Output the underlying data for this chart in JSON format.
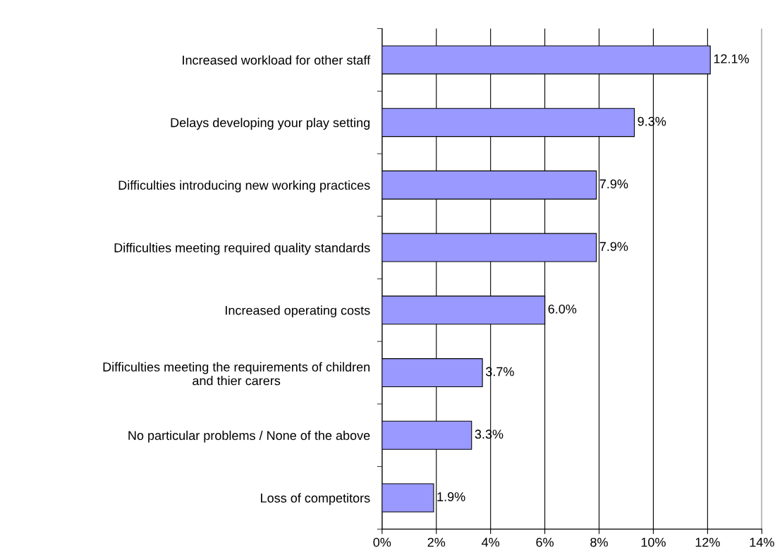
{
  "chart_data": {
    "type": "bar",
    "orientation": "horizontal",
    "categories": [
      "Increased workload for other staff",
      "Delays developing your play setting",
      "Difficulties introducing new working practices",
      "Difficulties meeting required quality standards",
      "Increased operating costs",
      "Difficulties meeting the requirements of children\nand thier carers",
      "No particular problems / None of the above",
      "Loss of competitors"
    ],
    "values": [
      12.1,
      9.3,
      7.9,
      7.9,
      6.0,
      3.7,
      3.3,
      1.9
    ],
    "value_labels": [
      "12.1%",
      "9.3%",
      "7.9%",
      "7.9%",
      "6.0%",
      "3.7%",
      "3.3%",
      "1.9%"
    ],
    "color": "#9999ff",
    "xlim": [
      0,
      14
    ],
    "xticks": [
      {
        "value": 0,
        "label": "0%"
      },
      {
        "value": 2,
        "label": "2%"
      },
      {
        "value": 4,
        "label": "4%"
      },
      {
        "value": 6,
        "label": "6%"
      },
      {
        "value": 8,
        "label": "8%"
      },
      {
        "value": 10,
        "label": "10%"
      },
      {
        "value": 12,
        "label": "12%"
      },
      {
        "value": 14,
        "label": "14%"
      }
    ],
    "grid": "x",
    "legend": false
  }
}
